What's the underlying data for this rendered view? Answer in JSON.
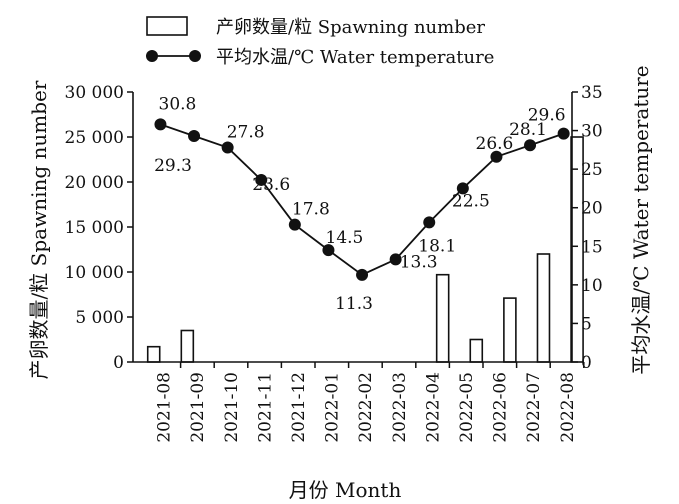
{
  "chart_data": {
    "type": "bar+line",
    "categories": [
      "2021-08",
      "2021-09",
      "2021-10",
      "2021-11",
      "2021-12",
      "2022-01",
      "2022-02",
      "2022-03",
      "2022-04",
      "2022-05",
      "2022-06",
      "2022-07",
      "2022-08"
    ],
    "xlabel": "月份 Month",
    "ylabel_left": "产卵数量/粒 Spawning number",
    "ylabel_right": "平均水温/℃ Water temperature",
    "ylim_left": [
      0,
      30000
    ],
    "ylim_right": [
      0,
      35
    ],
    "yticks_left": [
      "0",
      "5 000",
      "10 000",
      "15 000",
      "20 000",
      "25 000",
      "30 000"
    ],
    "yticks_right": [
      "0",
      "5",
      "10",
      "15",
      "20",
      "25",
      "30",
      "35"
    ],
    "legend_position": "top",
    "grid": false,
    "series": [
      {
        "name": "产卵数量/粒 Spawning number",
        "type": "bar",
        "axis": "left",
        "x": [
          0.2,
          1.2,
          8.8,
          9.8,
          10.8,
          11.8,
          12.8
        ],
        "values": [
          1700,
          3500,
          9700,
          2500,
          7100,
          12000,
          25000
        ]
      },
      {
        "name": "平均水温/℃ Water temperature",
        "type": "line",
        "axis": "right",
        "x": [
          0.4,
          1.4,
          2.4,
          3.4,
          4.4,
          5.4,
          6.4,
          7.4,
          8.4,
          9.4,
          10.4,
          11.4,
          12.4
        ],
        "values": [
          30.8,
          29.3,
          27.8,
          23.6,
          17.8,
          14.5,
          11.3,
          13.3,
          18.1,
          22.5,
          26.6,
          28.1,
          29.6
        ],
        "labels": [
          "30.8",
          "29.3",
          "27.8",
          "23.6",
          "17.8",
          "14.5",
          "11.3",
          "13.3",
          "18.1",
          "22.5",
          "26.6",
          "28.1",
          "29.6"
        ]
      }
    ]
  }
}
